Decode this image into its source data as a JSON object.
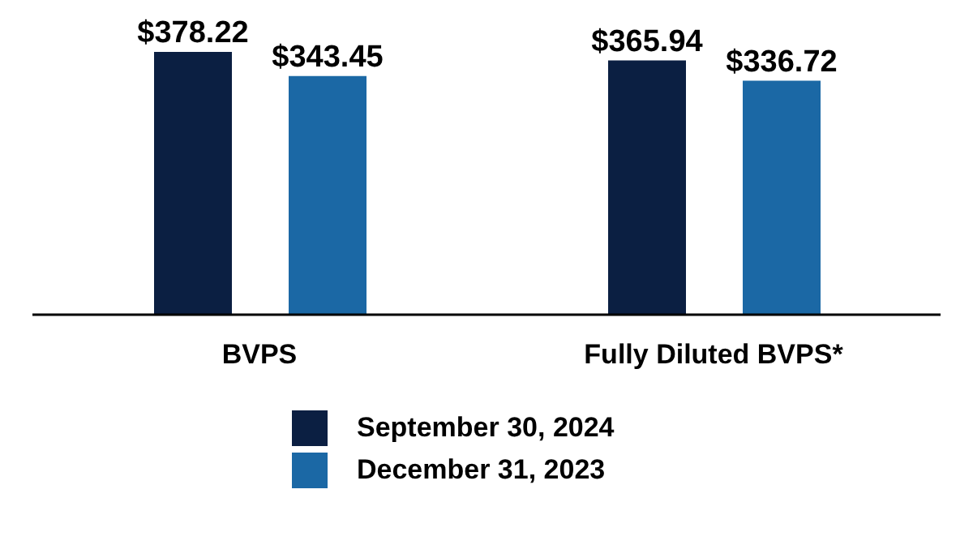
{
  "chart_data": {
    "type": "bar",
    "categories": [
      "BVPS",
      "Fully Diluted BVPS*"
    ],
    "series": [
      {
        "name": "September 30, 2024",
        "color": "#0b1f42",
        "values": [
          378.22,
          365.94
        ],
        "value_labels": [
          "$378.22",
          "$365.94"
        ]
      },
      {
        "name": "December 31, 2023",
        "color": "#1b68a5",
        "values": [
          343.45,
          336.72
        ],
        "value_labels": [
          "$343.45",
          "$336.72"
        ]
      }
    ],
    "legend": "bottom",
    "grid": false
  }
}
